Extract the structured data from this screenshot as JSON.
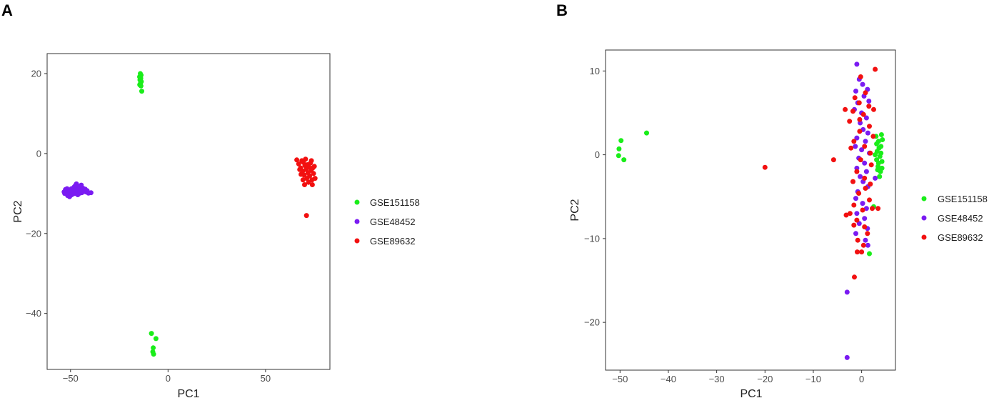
{
  "colors": {
    "GSE151158": "#1aed1a",
    "GSE48452": "#7a1bf2",
    "GSE89632": "#f21010"
  },
  "chart_data": [
    {
      "panel": "A",
      "type": "scatter",
      "xlabel": "PC1",
      "ylabel": "PC2",
      "xlim": [
        -62,
        83
      ],
      "ylim": [
        -54,
        25
      ],
      "xticks": [
        -50,
        0,
        50
      ],
      "yticks": [
        20,
        0,
        -20,
        -40
      ],
      "grid": false,
      "legend_position": "right",
      "legend": [
        "GSE151158",
        "GSE48452",
        "GSE89632"
      ],
      "series": [
        {
          "name": "GSE151158",
          "color": "#1aed1a",
          "points": [
            [
              -14.2,
              20.0
            ],
            [
              -13.8,
              19.6
            ],
            [
              -14.6,
              19.2
            ],
            [
              -14.0,
              18.8
            ],
            [
              -14.4,
              18.4
            ],
            [
              -13.7,
              18.0
            ],
            [
              -14.1,
              17.6
            ],
            [
              -14.5,
              17.2
            ],
            [
              -13.9,
              16.9
            ],
            [
              -13.5,
              15.6
            ],
            [
              -8.5,
              -45.0
            ],
            [
              -6.2,
              -46.3
            ],
            [
              -7.6,
              -48.6
            ],
            [
              -7.8,
              -49.6
            ],
            [
              -7.4,
              -50.2
            ]
          ]
        },
        {
          "name": "GSE48452",
          "color": "#7a1bf2",
          "points": [
            [
              -53.0,
              -10.0
            ],
            [
              -52.2,
              -9.5
            ],
            [
              -51.5,
              -10.5
            ],
            [
              -51.0,
              -9.2
            ],
            [
              -50.5,
              -10.8
            ],
            [
              -50.0,
              -9.8
            ],
            [
              -49.5,
              -8.8
            ],
            [
              -49.0,
              -10.2
            ],
            [
              -48.6,
              -9.4
            ],
            [
              -48.2,
              -8.4
            ],
            [
              -47.8,
              -10.0
            ],
            [
              -47.3,
              -9.0
            ],
            [
              -47.0,
              -7.6
            ],
            [
              -46.6,
              -9.6
            ],
            [
              -46.1,
              -8.6
            ],
            [
              -45.6,
              -10.0
            ],
            [
              -45.2,
              -8.2
            ],
            [
              -44.8,
              -9.2
            ],
            [
              -44.2,
              -9.8
            ],
            [
              -43.6,
              -8.7
            ],
            [
              -43.1,
              -9.5
            ],
            [
              -42.5,
              -8.9
            ],
            [
              -42.0,
              -9.6
            ],
            [
              -41.5,
              -9.3
            ],
            [
              -40.8,
              -9.9
            ],
            [
              -39.5,
              -9.8
            ],
            [
              -52.6,
              -9.0
            ],
            [
              -51.8,
              -8.8
            ],
            [
              -50.8,
              -9.6
            ],
            [
              -49.8,
              -10.4
            ],
            [
              -48.0,
              -9.2
            ],
            [
              -46.3,
              -10.3
            ],
            [
              -45.0,
              -9.4
            ],
            [
              -44.5,
              -7.9
            ],
            [
              -53.3,
              -9.6
            ],
            [
              -47.5,
              -8.0
            ]
          ]
        },
        {
          "name": "GSE89632",
          "color": "#f21010",
          "points": [
            [
              66.0,
              -1.6
            ],
            [
              67.0,
              -2.6
            ],
            [
              68.0,
              -3.6
            ],
            [
              68.6,
              -1.8
            ],
            [
              69.0,
              -4.4
            ],
            [
              69.4,
              -2.2
            ],
            [
              69.8,
              -5.4
            ],
            [
              70.2,
              -3.0
            ],
            [
              70.5,
              -1.4
            ],
            [
              70.8,
              -4.0
            ],
            [
              71.2,
              -6.2
            ],
            [
              71.5,
              -2.8
            ],
            [
              71.8,
              -4.8
            ],
            [
              72.2,
              -3.4
            ],
            [
              72.6,
              -5.6
            ],
            [
              73.0,
              -2.4
            ],
            [
              73.4,
              -4.2
            ],
            [
              73.8,
              -6.6
            ],
            [
              74.2,
              -3.6
            ],
            [
              74.6,
              -5.0
            ],
            [
              75.0,
              -3.2
            ],
            [
              75.4,
              -6.2
            ],
            [
              68.2,
              -5.2
            ],
            [
              69.2,
              -6.6
            ],
            [
              70.0,
              -7.8
            ],
            [
              72.0,
              -7.2
            ],
            [
              74.0,
              -7.8
            ],
            [
              71.0,
              -15.5
            ],
            [
              67.5,
              -4.0
            ],
            [
              73.5,
              -1.8
            ]
          ]
        }
      ]
    },
    {
      "panel": "B",
      "type": "scatter",
      "xlabel": "PC1",
      "ylabel": "PC2",
      "xlim": [
        -53,
        7
      ],
      "ylim": [
        -25.7,
        12.5
      ],
      "xticks": [
        -50,
        -40,
        -30,
        -20,
        -10,
        0
      ],
      "yticks": [
        10,
        0,
        -10,
        -20
      ],
      "grid": false,
      "legend_position": "right",
      "legend": [
        "GSE151158",
        "GSE48452",
        "GSE89632"
      ],
      "series": [
        {
          "name": "GSE151158",
          "color": "#1aed1a",
          "points": [
            [
              -50.2,
              0.7
            ],
            [
              -49.8,
              1.7
            ],
            [
              -50.3,
              -0.1
            ],
            [
              -49.2,
              -0.6
            ],
            [
              -44.5,
              2.6
            ],
            [
              3.0,
              2.2
            ],
            [
              3.5,
              1.6
            ],
            [
              4.0,
              1.0
            ],
            [
              3.2,
              0.4
            ],
            [
              3.8,
              -0.2
            ],
            [
              4.2,
              -0.8
            ],
            [
              3.4,
              -1.4
            ],
            [
              3.9,
              -2.0
            ],
            [
              4.1,
              2.4
            ],
            [
              3.1,
              -0.6
            ],
            [
              3.6,
              0.8
            ],
            [
              4.3,
              1.8
            ],
            [
              3.3,
              -1.8
            ],
            [
              3.7,
              -2.6
            ],
            [
              4.0,
              0.2
            ],
            [
              2.8,
              0.0
            ],
            [
              3.5,
              -1.0
            ],
            [
              4.2,
              -1.6
            ],
            [
              3.1,
              1.3
            ],
            [
              2.5,
              -6.2
            ],
            [
              1.6,
              -11.8
            ]
          ]
        },
        {
          "name": "GSE48452",
          "color": "#7a1bf2",
          "points": [
            [
              -1.0,
              10.8
            ],
            [
              -0.5,
              9.0
            ],
            [
              0.2,
              8.4
            ],
            [
              -1.2,
              7.6
            ],
            [
              0.5,
              7.0
            ],
            [
              1.2,
              7.8
            ],
            [
              -0.8,
              6.2
            ],
            [
              1.5,
              6.4
            ],
            [
              -1.5,
              5.4
            ],
            [
              0.0,
              5.0
            ],
            [
              1.0,
              4.4
            ],
            [
              -0.3,
              3.8
            ],
            [
              0.3,
              3.0
            ],
            [
              1.3,
              2.6
            ],
            [
              -1.0,
              2.0
            ],
            [
              0.8,
              1.6
            ],
            [
              -1.3,
              1.0
            ],
            [
              0.0,
              0.6
            ],
            [
              1.6,
              0.2
            ],
            [
              -0.6,
              -0.4
            ],
            [
              0.6,
              -1.0
            ],
            [
              -1.0,
              -1.6
            ],
            [
              1.0,
              -2.0
            ],
            [
              -0.3,
              -2.6
            ],
            [
              0.3,
              -3.2
            ],
            [
              1.3,
              -3.8
            ],
            [
              -0.8,
              -4.4
            ],
            [
              -1.2,
              -5.2
            ],
            [
              0.2,
              -5.8
            ],
            [
              1.0,
              -6.4
            ],
            [
              -1.0,
              -7.0
            ],
            [
              0.6,
              -7.6
            ],
            [
              -0.5,
              -8.2
            ],
            [
              1.2,
              -8.8
            ],
            [
              -1.2,
              -9.4
            ],
            [
              0.8,
              -10.2
            ],
            [
              1.3,
              -10.8
            ],
            [
              2.8,
              -2.8
            ],
            [
              -3.0,
              -16.4
            ],
            [
              -3.0,
              -24.2
            ]
          ]
        },
        {
          "name": "GSE89632",
          "color": "#f21010",
          "points": [
            [
              2.8,
              10.2
            ],
            [
              -0.2,
              9.3
            ],
            [
              0.8,
              7.4
            ],
            [
              -1.4,
              6.8
            ],
            [
              -0.5,
              6.2
            ],
            [
              1.5,
              5.8
            ],
            [
              2.5,
              5.4
            ],
            [
              -1.8,
              5.2
            ],
            [
              0.4,
              4.8
            ],
            [
              -2.5,
              4.0
            ],
            [
              1.6,
              3.4
            ],
            [
              -0.4,
              2.8
            ],
            [
              2.4,
              2.2
            ],
            [
              -1.6,
              1.6
            ],
            [
              0.6,
              1.0
            ],
            [
              -2.2,
              0.8
            ],
            [
              1.8,
              0.2
            ],
            [
              -0.2,
              -0.6
            ],
            [
              2.0,
              -1.2
            ],
            [
              -1.0,
              -2.0
            ],
            [
              0.6,
              -2.8
            ],
            [
              -1.8,
              -3.2
            ],
            [
              0.8,
              -4.0
            ],
            [
              -0.6,
              -4.6
            ],
            [
              1.6,
              -5.4
            ],
            [
              -1.6,
              -6.0
            ],
            [
              0.2,
              -6.6
            ],
            [
              -2.4,
              -7.0
            ],
            [
              2.2,
              -6.4
            ],
            [
              -1.0,
              -7.8
            ],
            [
              0.6,
              -8.6
            ],
            [
              -1.6,
              -8.4
            ],
            [
              1.2,
              -9.4
            ],
            [
              -0.8,
              -10.2
            ],
            [
              0.4,
              -10.8
            ],
            [
              -0.9,
              -11.6
            ],
            [
              0.0,
              -11.6
            ],
            [
              -1.5,
              -14.6
            ],
            [
              -5.8,
              -0.6
            ],
            [
              -20.0,
              -1.5
            ],
            [
              -3.4,
              5.4
            ],
            [
              3.4,
              -6.4
            ],
            [
              -3.2,
              -7.2
            ],
            [
              1.8,
              -3.5
            ],
            [
              -0.4,
              4.2
            ]
          ]
        }
      ]
    }
  ]
}
